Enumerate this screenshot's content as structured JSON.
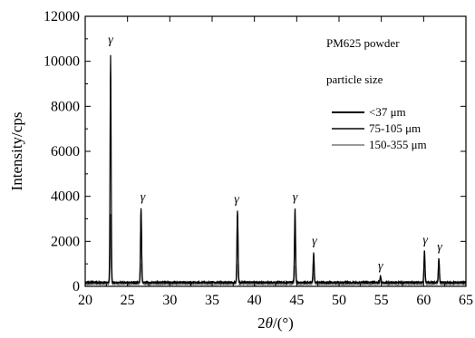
{
  "chart_data": {
    "type": "line",
    "title": "",
    "xlabel": "2θ/(°)",
    "ylabel": "Intensity/cps",
    "xlim": [
      20,
      65
    ],
    "ylim": [
      0,
      12000
    ],
    "x_ticks": [
      20,
      25,
      30,
      35,
      40,
      45,
      50,
      55,
      60,
      65
    ],
    "y_ticks": [
      0,
      2000,
      4000,
      6000,
      8000,
      10000,
      12000
    ],
    "grid": false,
    "legend_position": "top-right",
    "legend_title_lines": [
      "PM625 powder",
      "particle size"
    ],
    "series": [
      {
        "name": "<37 μm",
        "color": "#000000",
        "baseline": 180,
        "peaks": [
          {
            "x": 23.0,
            "y": 10300
          },
          {
            "x": 26.6,
            "y": 3500
          },
          {
            "x": 38.0,
            "y": 3350
          },
          {
            "x": 44.8,
            "y": 3500
          },
          {
            "x": 47.0,
            "y": 1500
          },
          {
            "x": 54.9,
            "y": 450
          },
          {
            "x": 60.1,
            "y": 1600
          },
          {
            "x": 61.8,
            "y": 1250
          }
        ]
      },
      {
        "name": "75-105 μm",
        "color": "#444444",
        "baseline": 150,
        "peaks": [
          {
            "x": 23.0,
            "y": 3200
          },
          {
            "x": 26.6,
            "y": 3400
          },
          {
            "x": 38.0,
            "y": 3300
          },
          {
            "x": 44.8,
            "y": 2800
          },
          {
            "x": 47.0,
            "y": 1300
          },
          {
            "x": 54.9,
            "y": 380
          },
          {
            "x": 60.1,
            "y": 1300
          },
          {
            "x": 61.8,
            "y": 1150
          }
        ]
      },
      {
        "name": "150-355 μm",
        "color": "#9a9a9a",
        "baseline": 100,
        "peaks": [
          {
            "x": 23.0,
            "y": 2000
          },
          {
            "x": 26.6,
            "y": 1000
          },
          {
            "x": 38.0,
            "y": 1000
          },
          {
            "x": 44.8,
            "y": 900
          },
          {
            "x": 47.0,
            "y": 600
          },
          {
            "x": 54.9,
            "y": 250
          },
          {
            "x": 60.1,
            "y": 700
          },
          {
            "x": 61.8,
            "y": 600
          }
        ]
      }
    ],
    "annotations": [
      {
        "text": "γ",
        "x": 23.0,
        "y": 10800
      },
      {
        "text": "γ",
        "x": 26.8,
        "y": 3800
      },
      {
        "text": "γ",
        "x": 37.9,
        "y": 3700
      },
      {
        "text": "γ",
        "x": 44.8,
        "y": 3800
      },
      {
        "text": "γ",
        "x": 47.1,
        "y": 1850
      },
      {
        "text": "γ",
        "x": 54.9,
        "y": 750
      },
      {
        "text": "γ",
        "x": 60.2,
        "y": 1900
      },
      {
        "text": "γ",
        "x": 61.9,
        "y": 1600
      }
    ]
  }
}
